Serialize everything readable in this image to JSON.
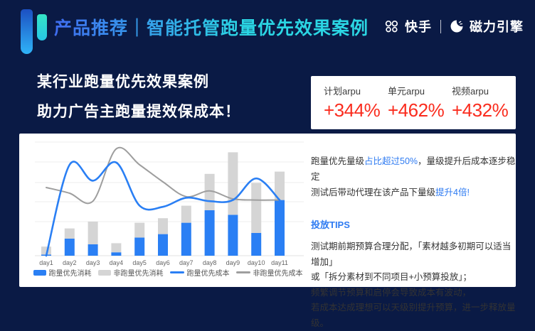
{
  "header": {
    "title": "产品推荐｜智能托管跑量优先效果案例",
    "brand_kuaishou": "快手",
    "brand_engine": "磁力引擎"
  },
  "headline": {
    "line1": "某行业跑量优先效果案例",
    "line2": "助力广告主跑量提效保成本！"
  },
  "stats": {
    "items": [
      {
        "label": "计划arpu",
        "value": "+344%"
      },
      {
        "label": "单元arpu",
        "value": "+462%"
      },
      {
        "label": "视频arpu",
        "value": "+432%"
      }
    ]
  },
  "insight": {
    "line1_pre": "跑量优先量级",
    "line1_hl": "占比超过50%",
    "line1_post": "，量级提升后成本逐步稳定",
    "line2_pre": "测试后带动代理在该产品下量级",
    "line2_hl": "提升4倍!",
    "tips_title": "投放TIPS",
    "tips_lines": [
      "测试期前期预算合理分配，「素材越多初期可以适当增加」",
      "或「拆分素材到不同项目+小预算投放」；",
      "频繁调节预算和启停会导致成本有波动，",
      "若成本达成理想可以天级别提升预算，进一步释放量级。"
    ]
  },
  "chart_data": {
    "type": "combo",
    "categories": [
      "day1",
      "day2",
      "day3",
      "day4",
      "day5",
      "day6",
      "day7",
      "day8",
      "day9",
      "day10",
      "day11"
    ],
    "series": [
      {
        "name": "跑量优先消耗",
        "type": "bar",
        "stack": true,
        "color": "#2a7ff4",
        "values": [
          1,
          15,
          10,
          3,
          16,
          19,
          29,
          40,
          36,
          20,
          49
        ]
      },
      {
        "name": "非跑量优先消耗",
        "type": "bar",
        "stack": true,
        "color": "#d5d5d5",
        "values": [
          7,
          9,
          20,
          8,
          13,
          14,
          15,
          32,
          55,
          44,
          25
        ]
      },
      {
        "name": "跑量优先成本",
        "type": "line",
        "color": "#2a7ff4",
        "values": [
          0,
          80,
          66,
          82,
          44,
          43,
          51,
          48,
          49,
          68,
          49
        ]
      },
      {
        "name": "非跑量优先成本",
        "type": "line",
        "color": "#9e9e9e",
        "values": [
          60,
          55,
          48,
          94,
          80,
          65,
          52,
          57,
          50,
          49,
          49
        ]
      }
    ],
    "title": "",
    "xlabel": "",
    "ylabel": "",
    "ylim": [
      0,
      105
    ],
    "grid": true,
    "y_axis_labels": false,
    "legend_position": "bottom"
  },
  "colors": {
    "background": "#0a1a45",
    "accent_blue": "#2e7bf2",
    "stat_red": "#fa2c1e",
    "title_gradient_start": "#3f6cf0",
    "title_gradient_end": "#2bd6e4",
    "bar_blue": "#2a7ff4",
    "bar_gray": "#d5d5d5",
    "line_gray": "#9e9e9e"
  }
}
